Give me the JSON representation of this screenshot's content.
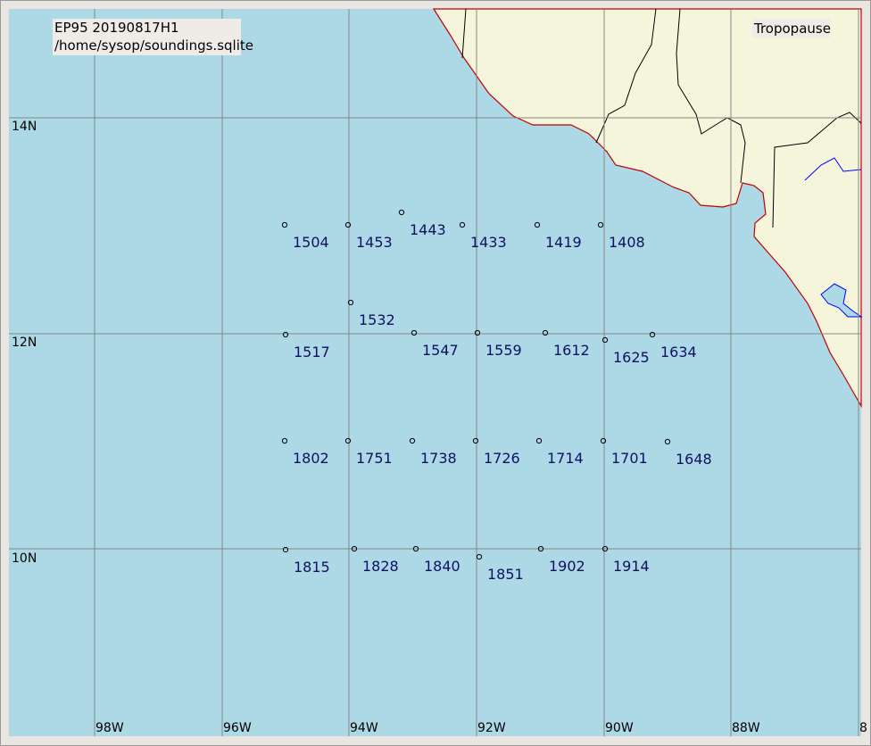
{
  "header": {
    "line1": "EP95 20190817H1",
    "line2": "/home/sysop/soundings.sqlite",
    "layer": "Tropopause"
  },
  "grid": {
    "lat_labels": [
      "14N",
      "12N",
      "10N"
    ],
    "lon_labels": [
      "98W",
      "96W",
      "94W",
      "92W",
      "90W",
      "88W",
      "8"
    ]
  },
  "stations": [
    "1504",
    "1453",
    "1443",
    "1433",
    "1419",
    "1408",
    "1532",
    "1517",
    "1547",
    "1559",
    "1612",
    "1625",
    "1634",
    "1802",
    "1751",
    "1738",
    "1726",
    "1714",
    "1701",
    "1648",
    "1815",
    "1828",
    "1840",
    "1851",
    "1902",
    "1914"
  ]
}
